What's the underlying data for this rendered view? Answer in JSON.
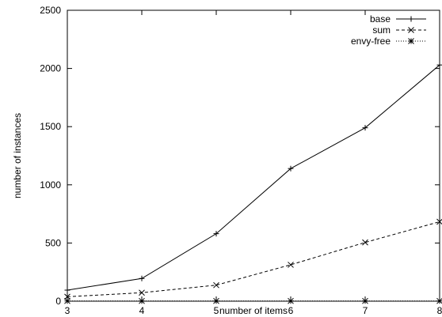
{
  "chart_data": {
    "type": "line",
    "x": [
      3,
      4,
      5,
      6,
      7,
      8
    ],
    "xlabel": "number of items",
    "ylabel": "number of instances",
    "xlim": [
      3,
      8
    ],
    "ylim": [
      0,
      2500
    ],
    "xticks": [
      3,
      4,
      5,
      6,
      7,
      8
    ],
    "yticks": [
      0,
      500,
      1000,
      1500,
      2000,
      2500
    ],
    "grid": false,
    "legend_position": "top-right",
    "series": [
      {
        "name": "base",
        "values": [
          95,
          195,
          580,
          1140,
          1490,
          2030
        ],
        "line_style": "solid",
        "marker": "plus",
        "color": "#000000"
      },
      {
        "name": "sum",
        "values": [
          38,
          73,
          138,
          313,
          505,
          683
        ],
        "line_style": "dashed",
        "marker": "cross",
        "color": "#000000"
      },
      {
        "name": "envy-free",
        "values": [
          2,
          2,
          2,
          2,
          2,
          2
        ],
        "line_style": "dotted",
        "marker": "star",
        "color": "#000000"
      }
    ]
  }
}
